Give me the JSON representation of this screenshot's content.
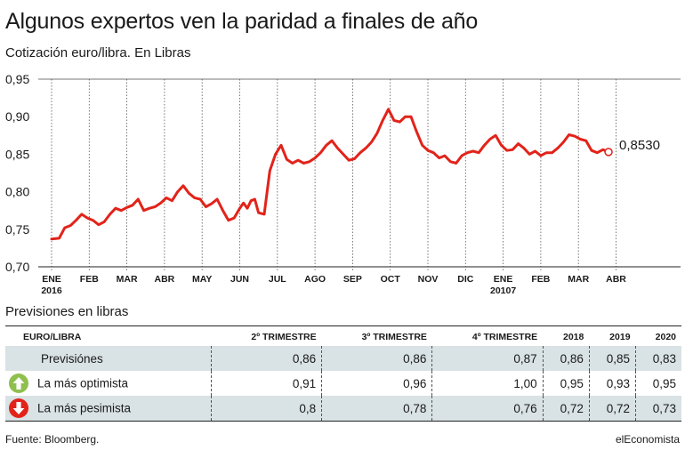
{
  "title": "Algunos expertos ven la paridad a finales de año",
  "subtitle": "Cotización euro/libra. En Libras",
  "chart_data": {
    "type": "line",
    "ylim": [
      0.7,
      0.95
    ],
    "yticks": [
      "0,95",
      "0,90",
      "0,85",
      "0,80",
      "0,75",
      "0,70"
    ],
    "ytick_values": [
      0.95,
      0.9,
      0.85,
      0.8,
      0.75,
      0.7
    ],
    "xticks": [
      "ENE",
      "FEB",
      "MAR",
      "ABR",
      "MAY",
      "JUN",
      "JUL",
      "AGO",
      "SEP",
      "OCT",
      "NOV",
      "DIC",
      "ENE",
      "FEB",
      "MAR",
      "ABR"
    ],
    "xticks_year": {
      "0": "2016",
      "12": "20107"
    },
    "grid": "vertical",
    "series": [
      {
        "color": "#e2231a",
        "x": [
          0.0,
          0.2,
          0.35,
          0.5,
          0.65,
          0.8,
          0.95,
          1.1,
          1.25,
          1.4,
          1.55,
          1.7,
          1.85,
          2.0,
          2.15,
          2.3,
          2.45,
          2.6,
          2.75,
          2.9,
          3.05,
          3.2,
          3.35,
          3.5,
          3.65,
          3.8,
          3.95,
          4.1,
          4.25,
          4.4,
          4.55,
          4.7,
          4.85,
          5.0,
          5.1,
          5.2,
          5.3,
          5.4,
          5.5,
          5.65,
          5.8,
          5.95,
          6.1,
          6.25,
          6.4,
          6.55,
          6.7,
          6.85,
          7.0,
          7.15,
          7.3,
          7.45,
          7.6,
          7.75,
          7.9,
          8.05,
          8.2,
          8.35,
          8.5,
          8.65,
          8.8,
          8.95,
          9.1,
          9.25,
          9.4,
          9.55,
          9.7,
          9.85,
          10.0,
          10.15,
          10.3,
          10.45,
          10.6,
          10.75,
          10.9,
          11.05,
          11.2,
          11.35,
          11.5,
          11.65,
          11.8,
          11.95,
          12.1,
          12.25,
          12.4,
          12.55,
          12.7,
          12.85,
          13.0,
          13.15,
          13.3,
          13.45,
          13.6,
          13.75,
          13.9,
          14.05,
          14.2,
          14.35,
          14.5,
          14.65,
          14.8
        ],
        "values": [
          0.737,
          0.738,
          0.752,
          0.755,
          0.762,
          0.77,
          0.765,
          0.762,
          0.756,
          0.76,
          0.77,
          0.778,
          0.775,
          0.779,
          0.782,
          0.79,
          0.775,
          0.778,
          0.78,
          0.785,
          0.792,
          0.788,
          0.8,
          0.808,
          0.798,
          0.792,
          0.79,
          0.78,
          0.784,
          0.79,
          0.775,
          0.762,
          0.765,
          0.778,
          0.785,
          0.778,
          0.788,
          0.79,
          0.772,
          0.77,
          0.828,
          0.85,
          0.862,
          0.843,
          0.838,
          0.842,
          0.838,
          0.84,
          0.845,
          0.852,
          0.862,
          0.868,
          0.858,
          0.85,
          0.842,
          0.844,
          0.852,
          0.858,
          0.866,
          0.878,
          0.895,
          0.91,
          0.895,
          0.893,
          0.9,
          0.9,
          0.88,
          0.862,
          0.855,
          0.852,
          0.845,
          0.848,
          0.84,
          0.838,
          0.848,
          0.852,
          0.854,
          0.852,
          0.862,
          0.87,
          0.875,
          0.862,
          0.855,
          0.856,
          0.864,
          0.858,
          0.85,
          0.854,
          0.848,
          0.852,
          0.852,
          0.858,
          0.866,
          0.876,
          0.874,
          0.87,
          0.868,
          0.855,
          0.852,
          0.856,
          0.853
        ]
      }
    ],
    "end_label": "0,8530",
    "end_value": 0.853
  },
  "table": {
    "section_title": "Previsiones en libras",
    "headers": [
      "EURO/LIBRA",
      "2º TRIMESTRE",
      "3º TRIMESTRE",
      "4º TRIMESTRE",
      "2018",
      "2019",
      "2020"
    ],
    "rows": [
      {
        "label": "Previsiónes",
        "values": [
          "0,86",
          "0,86",
          "0,87",
          "0,86",
          "0,85",
          "0,83"
        ]
      },
      {
        "label": "La más optimista",
        "icon": "arrow-up-icon",
        "values": [
          "0,91",
          "0,96",
          "1,00",
          "0,95",
          "0,93",
          "0,95"
        ]
      },
      {
        "label": "La más pesimista",
        "icon": "arrow-down-icon",
        "values": [
          "0,8",
          "0,78",
          "0,76",
          "0,72",
          "0,72",
          "0,73"
        ]
      }
    ]
  },
  "footer": {
    "source": "Fuente: Bloomberg.",
    "brand": "elEconomista"
  },
  "colors": {
    "line": "#e2231a",
    "shade": "#d9e2e4",
    "up": "#8fbf4d",
    "down": "#e2231a"
  }
}
